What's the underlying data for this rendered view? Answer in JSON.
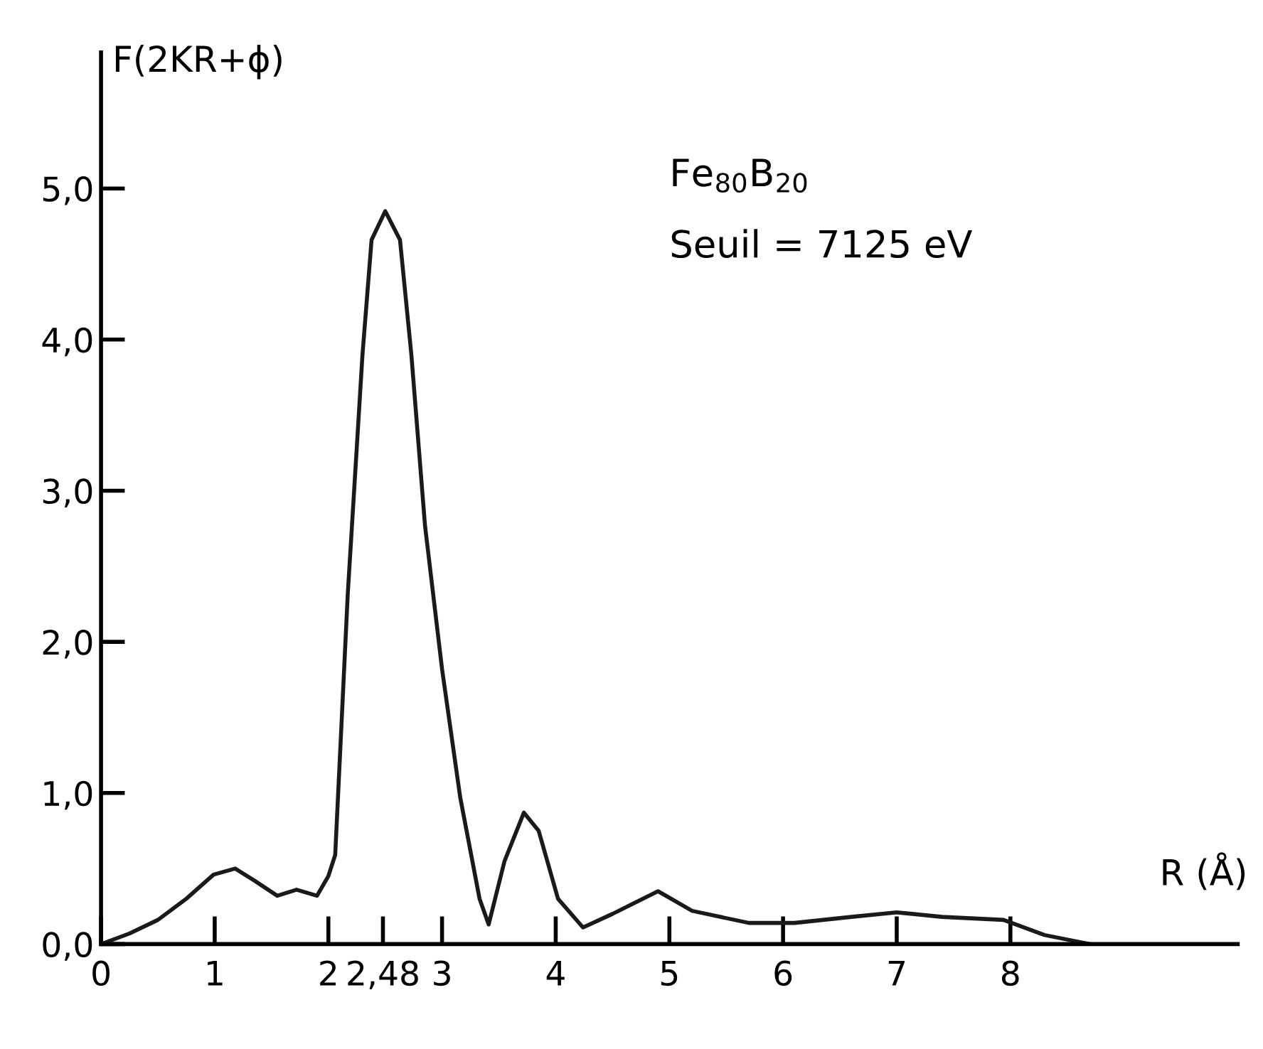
{
  "chart_data": {
    "type": "line",
    "xlabel": "R (Å)",
    "ylabel": "F(2KR+ϕ)",
    "annotations": [
      "Fe$_{80}$B$_{20}$",
      "Seuil = 7125 eV"
    ],
    "series": [
      {
        "color": "#1a1a1a",
        "x": [
          0.0,
          0.25,
          0.5,
          0.75,
          0.99,
          1.18,
          1.35,
          1.55,
          1.72,
          1.9,
          2.0,
          2.06,
          2.17,
          2.3,
          2.38,
          2.5,
          2.63,
          2.73,
          2.85,
          3.0,
          3.16,
          3.33,
          3.41,
          3.55,
          3.72,
          3.85,
          4.02,
          4.24,
          4.5,
          4.9,
          5.2,
          5.7,
          6.1,
          6.6,
          7.0,
          7.4,
          7.94,
          8.3,
          8.7
        ],
        "values": [
          0.0,
          0.07,
          0.16,
          0.3,
          0.46,
          0.5,
          0.42,
          0.32,
          0.36,
          0.32,
          0.45,
          0.59,
          2.31,
          3.9,
          4.66,
          4.85,
          4.66,
          3.9,
          2.77,
          1.82,
          0.97,
          0.3,
          0.13,
          0.55,
          0.87,
          0.75,
          0.3,
          0.11,
          0.2,
          0.35,
          0.22,
          0.14,
          0.14,
          0.18,
          0.21,
          0.18,
          0.16,
          0.06,
          0.0
        ]
      }
    ],
    "xlim": [
      0,
      10
    ],
    "ylim": [
      0,
      5.9
    ],
    "xticks": [
      0,
      1,
      2,
      {
        "value": 2.48,
        "label": "2,48"
      },
      3,
      4,
      5,
      6,
      7,
      8
    ],
    "yticks": [
      {
        "value": 0,
        "label": "0,0"
      },
      {
        "value": 1,
        "label": "1,0"
      },
      {
        "value": 2,
        "label": "2,0"
      },
      {
        "value": 3,
        "label": "3,0"
      },
      {
        "value": 4,
        "label": "4,0"
      },
      {
        "value": 5,
        "label": "5,0"
      }
    ],
    "grid": false,
    "legend": false,
    "marker": "none",
    "line_style": "solid"
  }
}
